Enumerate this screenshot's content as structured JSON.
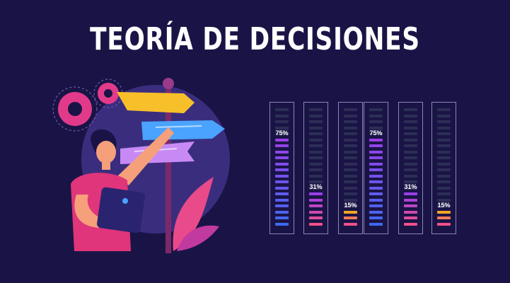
{
  "title": "TEORÍA DE DECISIONES",
  "meters": [
    {
      "label": "75%",
      "value": 75,
      "palette": "purple-blue"
    },
    {
      "label": "31%",
      "value": 31,
      "palette": "purple-pink"
    },
    {
      "label": "15%",
      "value": 15,
      "palette": "orange-pink"
    },
    {
      "label": "75%",
      "value": 75,
      "palette": "purple-blue"
    },
    {
      "label": "31%",
      "value": 31,
      "palette": "purple-pink"
    },
    {
      "label": "15%",
      "value": 15,
      "palette": "orange-pink"
    }
  ],
  "colors": {
    "background": "#1a1446",
    "inactive_bar": "#2c2e56",
    "frame": "#8a86b4",
    "purple": "#9b3fe8",
    "blue": "#3f6af0",
    "pink": "#f0508a",
    "orange": "#f5a623"
  }
}
